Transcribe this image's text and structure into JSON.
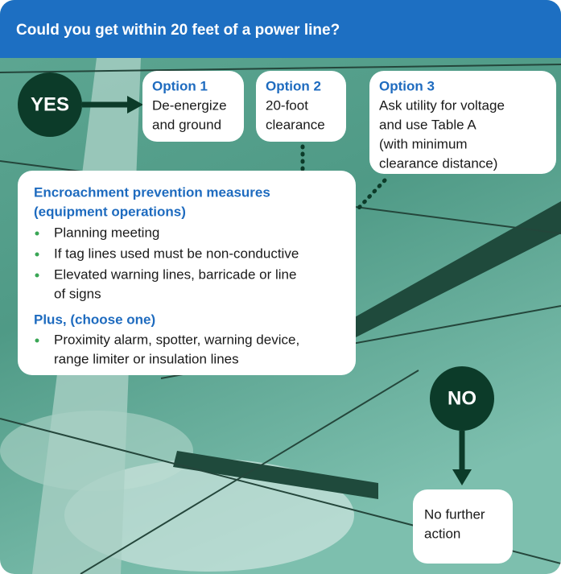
{
  "header": {
    "title": "Could you get within 20 feet of a power line?"
  },
  "start": {
    "label": "YES"
  },
  "options": [
    {
      "title": "Option 1",
      "lines": [
        "De-energize",
        "and ground"
      ]
    },
    {
      "title": "Option 2",
      "lines": [
        "20-foot",
        "clearance"
      ]
    },
    {
      "title": "Option 3",
      "lines": [
        "Ask utility for voltage",
        "and use Table A",
        "(with minimum",
        "clearance distance)"
      ]
    }
  ],
  "measures": {
    "title_lines": [
      "Encroachment prevention measures",
      "(equipment operations)"
    ],
    "items": [
      {
        "lines": [
          "Planning meeting"
        ]
      },
      {
        "lines": [
          "If tag lines used must be non-conductive"
        ]
      },
      {
        "lines": [
          "Elevated warning lines, barricade or line",
          "of signs"
        ]
      }
    ],
    "plus": {
      "title": "Plus, (choose one)",
      "items": [
        {
          "lines": [
            "Proximity alarm, spotter, warning device,",
            "range limiter or insulation lines"
          ]
        }
      ]
    }
  },
  "alternative": {
    "label": "NO"
  },
  "result": {
    "lines": [
      "No further",
      "action"
    ]
  }
}
